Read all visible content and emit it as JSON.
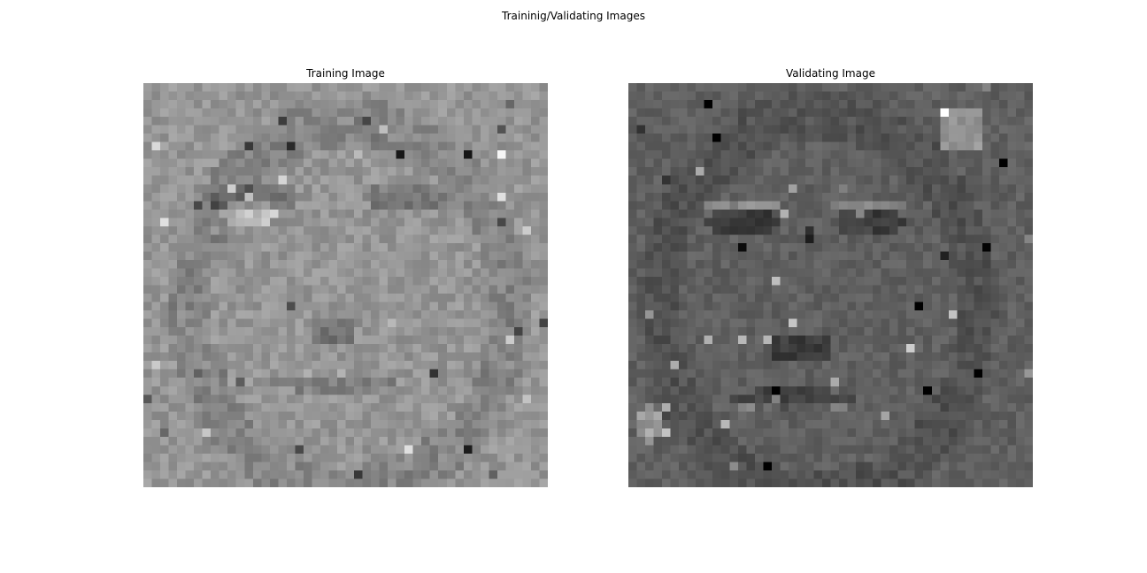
{
  "figure": {
    "suptitle": "Traininig/Validating Images"
  },
  "panels": [
    {
      "title": "Training Image",
      "image": {
        "colormap": "gray",
        "grid": [
          48,
          48
        ],
        "axis": "off"
      }
    },
    {
      "title": "Validating Image",
      "image": {
        "colormap": "gray",
        "grid": [
          48,
          48
        ],
        "axis": "off"
      }
    }
  ]
}
